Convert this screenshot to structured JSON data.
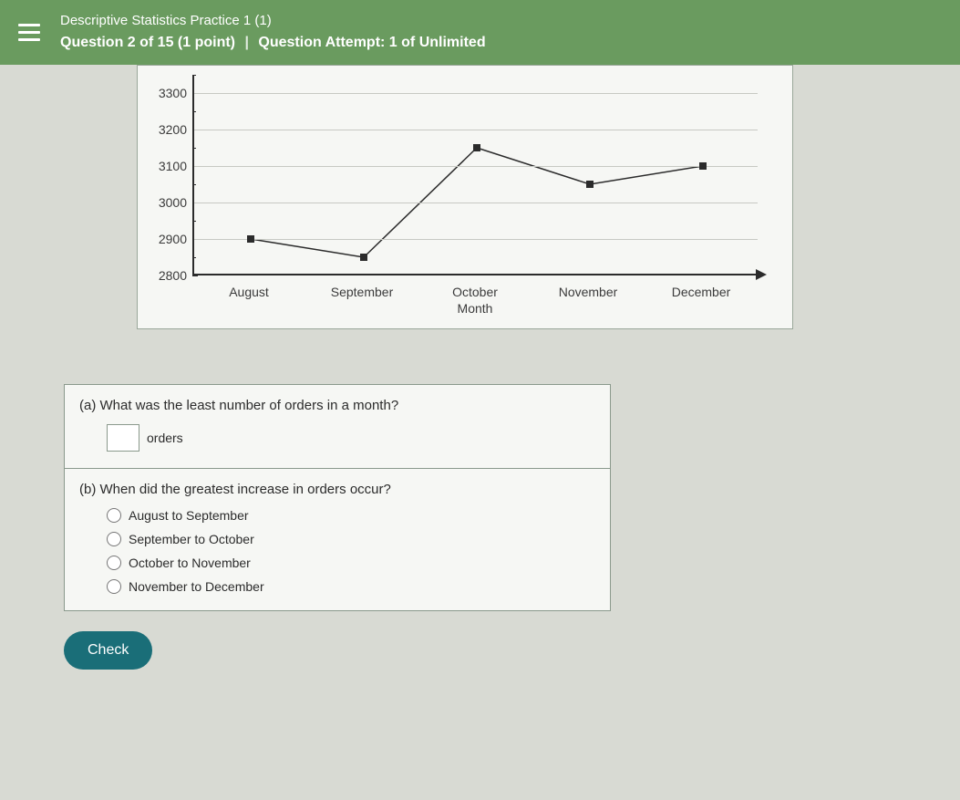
{
  "header": {
    "title": "Descriptive Statistics Practice 1 (1)",
    "question_line_prefix": "Question 2 of 15 (1 point)",
    "divider": "|",
    "attempt": "Question Attempt: 1 of Unlimited",
    "bg_color": "#6a9b5f"
  },
  "chart": {
    "type": "line",
    "x_title": "Month",
    "categories": [
      "August",
      "September",
      "October",
      "November",
      "December"
    ],
    "values": [
      2900,
      2850,
      3150,
      3050,
      3100
    ],
    "ylim": [
      2800,
      3350
    ],
    "yticks": [
      2800,
      2900,
      3000,
      3100,
      3200,
      3300
    ],
    "ytick_minor_step": 50,
    "marker_color": "#2b2b2b",
    "line_color": "#2b2b2b",
    "marker_style": "square",
    "marker_size": 8,
    "line_width": 1.5,
    "grid_color": "#c7c9c3",
    "background_color": "#f6f7f4",
    "axis_color": "#2b2b2b",
    "label_fontsize": 14,
    "label_color": "#3b3b3b"
  },
  "question_a": {
    "prompt": "(a) What was the least number of orders in a month?",
    "input_value": "",
    "unit": "orders"
  },
  "question_b": {
    "prompt": "(b) When did the greatest increase in orders occur?",
    "options": [
      "August to September",
      "September to October",
      "October to November",
      "November to December"
    ]
  },
  "buttons": {
    "check": "Check"
  }
}
